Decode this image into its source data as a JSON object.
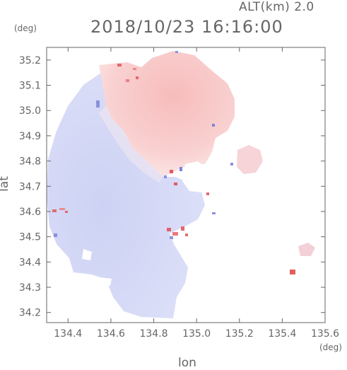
{
  "header": {
    "altitude_label": "ALT(km) 2.0",
    "datetime": "2018/10/23 16:16:00"
  },
  "axes": {
    "lat_unit": "(deg)",
    "lon_unit": "(deg)",
    "xlabel": "lon",
    "ylabel": "lat"
  },
  "chart_data": {
    "type": "heatmap",
    "xlim": [
      134.3,
      135.6
    ],
    "ylim": [
      34.16,
      35.25
    ],
    "x_ticks": [
      134.4,
      134.6,
      134.8,
      135.0,
      135.2,
      135.4,
      135.6
    ],
    "y_ticks": [
      34.2,
      34.3,
      34.4,
      34.5,
      34.6,
      34.7,
      34.8,
      34.9,
      35.0,
      35.1,
      35.2
    ],
    "x_tick_labels": [
      "134.4",
      "134.6",
      "134.8",
      "135.0",
      "135.2",
      "135.4",
      "135.6"
    ],
    "y_tick_labels": [
      "34.2",
      "34.3",
      "34.4",
      "34.5",
      "34.6",
      "34.7",
      "34.8",
      "34.9",
      "35.0",
      "35.1",
      "35.2"
    ],
    "colors": {
      "negative": "#d4d8f6",
      "positive": "#f8c8c8",
      "strong_negative": "#6f79d9",
      "strong_positive": "#e05a5a"
    }
  }
}
